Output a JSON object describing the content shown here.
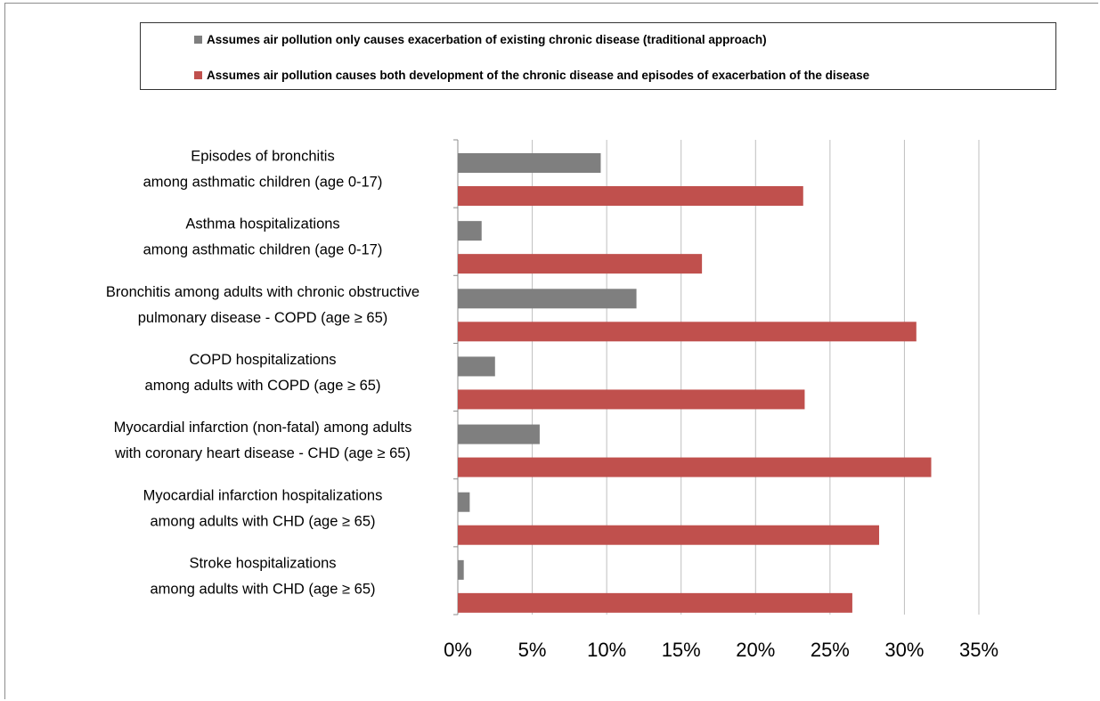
{
  "chart_data": {
    "type": "bar",
    "orientation": "horizontal",
    "title": "",
    "xlabel": "",
    "ylabel": "",
    "xlim": [
      0,
      35
    ],
    "x_ticks": [
      "0%",
      "5%",
      "10%",
      "15%",
      "20%",
      "25%",
      "30%",
      "35%"
    ],
    "grid": "vertical",
    "legend_position": "top",
    "categories": [
      [
        "Episodes of bronchitis",
        "among asthmatic children (age 0-17)"
      ],
      [
        "Asthma hospitalizations",
        "among asthmatic children (age 0-17)"
      ],
      [
        "Bronchitis among adults with chronic obstructive",
        "pulmonary disease - COPD (age ≥ 65)"
      ],
      [
        "COPD hospitalizations",
        "among adults with COPD (age ≥ 65)"
      ],
      [
        "Myocardial infarction (non-fatal) among adults",
        "with coronary heart disease - CHD (age ≥ 65)"
      ],
      [
        "Myocardial infarction hospitalizations",
        "among adults with CHD (age ≥ 65)"
      ],
      [
        "Stroke hospitalizations",
        "among adults with CHD (age ≥ 65)"
      ]
    ],
    "series": [
      {
        "name": "Assumes air pollution only causes exacerbation of existing chronic disease (traditional approach)",
        "color": "#7f7f7f",
        "values": [
          9.6,
          1.6,
          12.0,
          2.5,
          5.5,
          0.8,
          0.4
        ]
      },
      {
        "name": "Assumes air pollution causes both development of the chronic disease and episodes of exacerbation of the disease",
        "color": "#c0504d",
        "values": [
          23.2,
          16.4,
          30.8,
          23.3,
          31.8,
          28.3,
          26.5
        ]
      }
    ]
  }
}
